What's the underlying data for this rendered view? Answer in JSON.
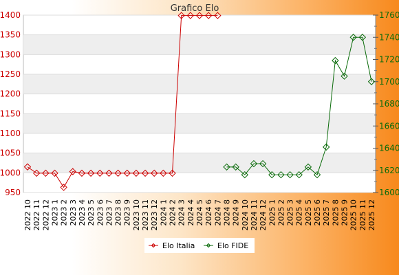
{
  "chart_data": {
    "type": "line",
    "title": "Grafico Elo",
    "categories": [
      "2022 10",
      "2022 11",
      "2022 12",
      "2023 1",
      "2023 2",
      "2023 3",
      "2023 4",
      "2023 5",
      "2023 6",
      "2023 7",
      "2023 8",
      "2023 9",
      "2023 10",
      "2023 11",
      "2023 12",
      "2024 1",
      "2024 2",
      "2024 3",
      "2024 4",
      "2024 5",
      "2024 6",
      "2024 7",
      "2024 8",
      "2024 9",
      "2024 10",
      "2024 11",
      "2024 12",
      "2025 1",
      "2025 2",
      "2025 3",
      "2025 4",
      "2025 5",
      "2025 6",
      "2025 7",
      "2025 8",
      "2025 9",
      "2025 10",
      "2025 11",
      "2025 12"
    ],
    "series": [
      {
        "name": "Elo Italia",
        "axis": "left",
        "color": "#cc0000",
        "values": [
          1015,
          999,
          999,
          999,
          963,
          1003,
          999,
          999,
          999,
          999,
          999,
          999,
          999,
          999,
          999,
          999,
          999,
          1399,
          1399,
          1399,
          1399,
          1399,
          null,
          null,
          null,
          null,
          null,
          null,
          null,
          null,
          null,
          null,
          null,
          null,
          null,
          null,
          null,
          null,
          null
        ]
      },
      {
        "name": "Elo FIDE",
        "axis": "right",
        "color": "#0a6b0a",
        "values": [
          null,
          null,
          null,
          null,
          null,
          null,
          null,
          null,
          null,
          null,
          null,
          null,
          null,
          null,
          null,
          null,
          null,
          null,
          null,
          null,
          null,
          null,
          1623,
          1623,
          1616,
          1626,
          1626,
          1616,
          1616,
          1616,
          1616,
          1623,
          1616,
          1641,
          1719,
          1705,
          1740,
          1740,
          1700
        ]
      }
    ],
    "y_left": {
      "min": 950,
      "max": 1400,
      "ticks": [
        950,
        1000,
        1050,
        1100,
        1150,
        1200,
        1250,
        1300,
        1350,
        1400
      ]
    },
    "y_right": {
      "min": 1600,
      "max": 1760,
      "ticks": [
        1600,
        1620,
        1640,
        1660,
        1680,
        1700,
        1720,
        1740,
        1760
      ]
    },
    "grid": true,
    "legend_position": "bottom"
  }
}
